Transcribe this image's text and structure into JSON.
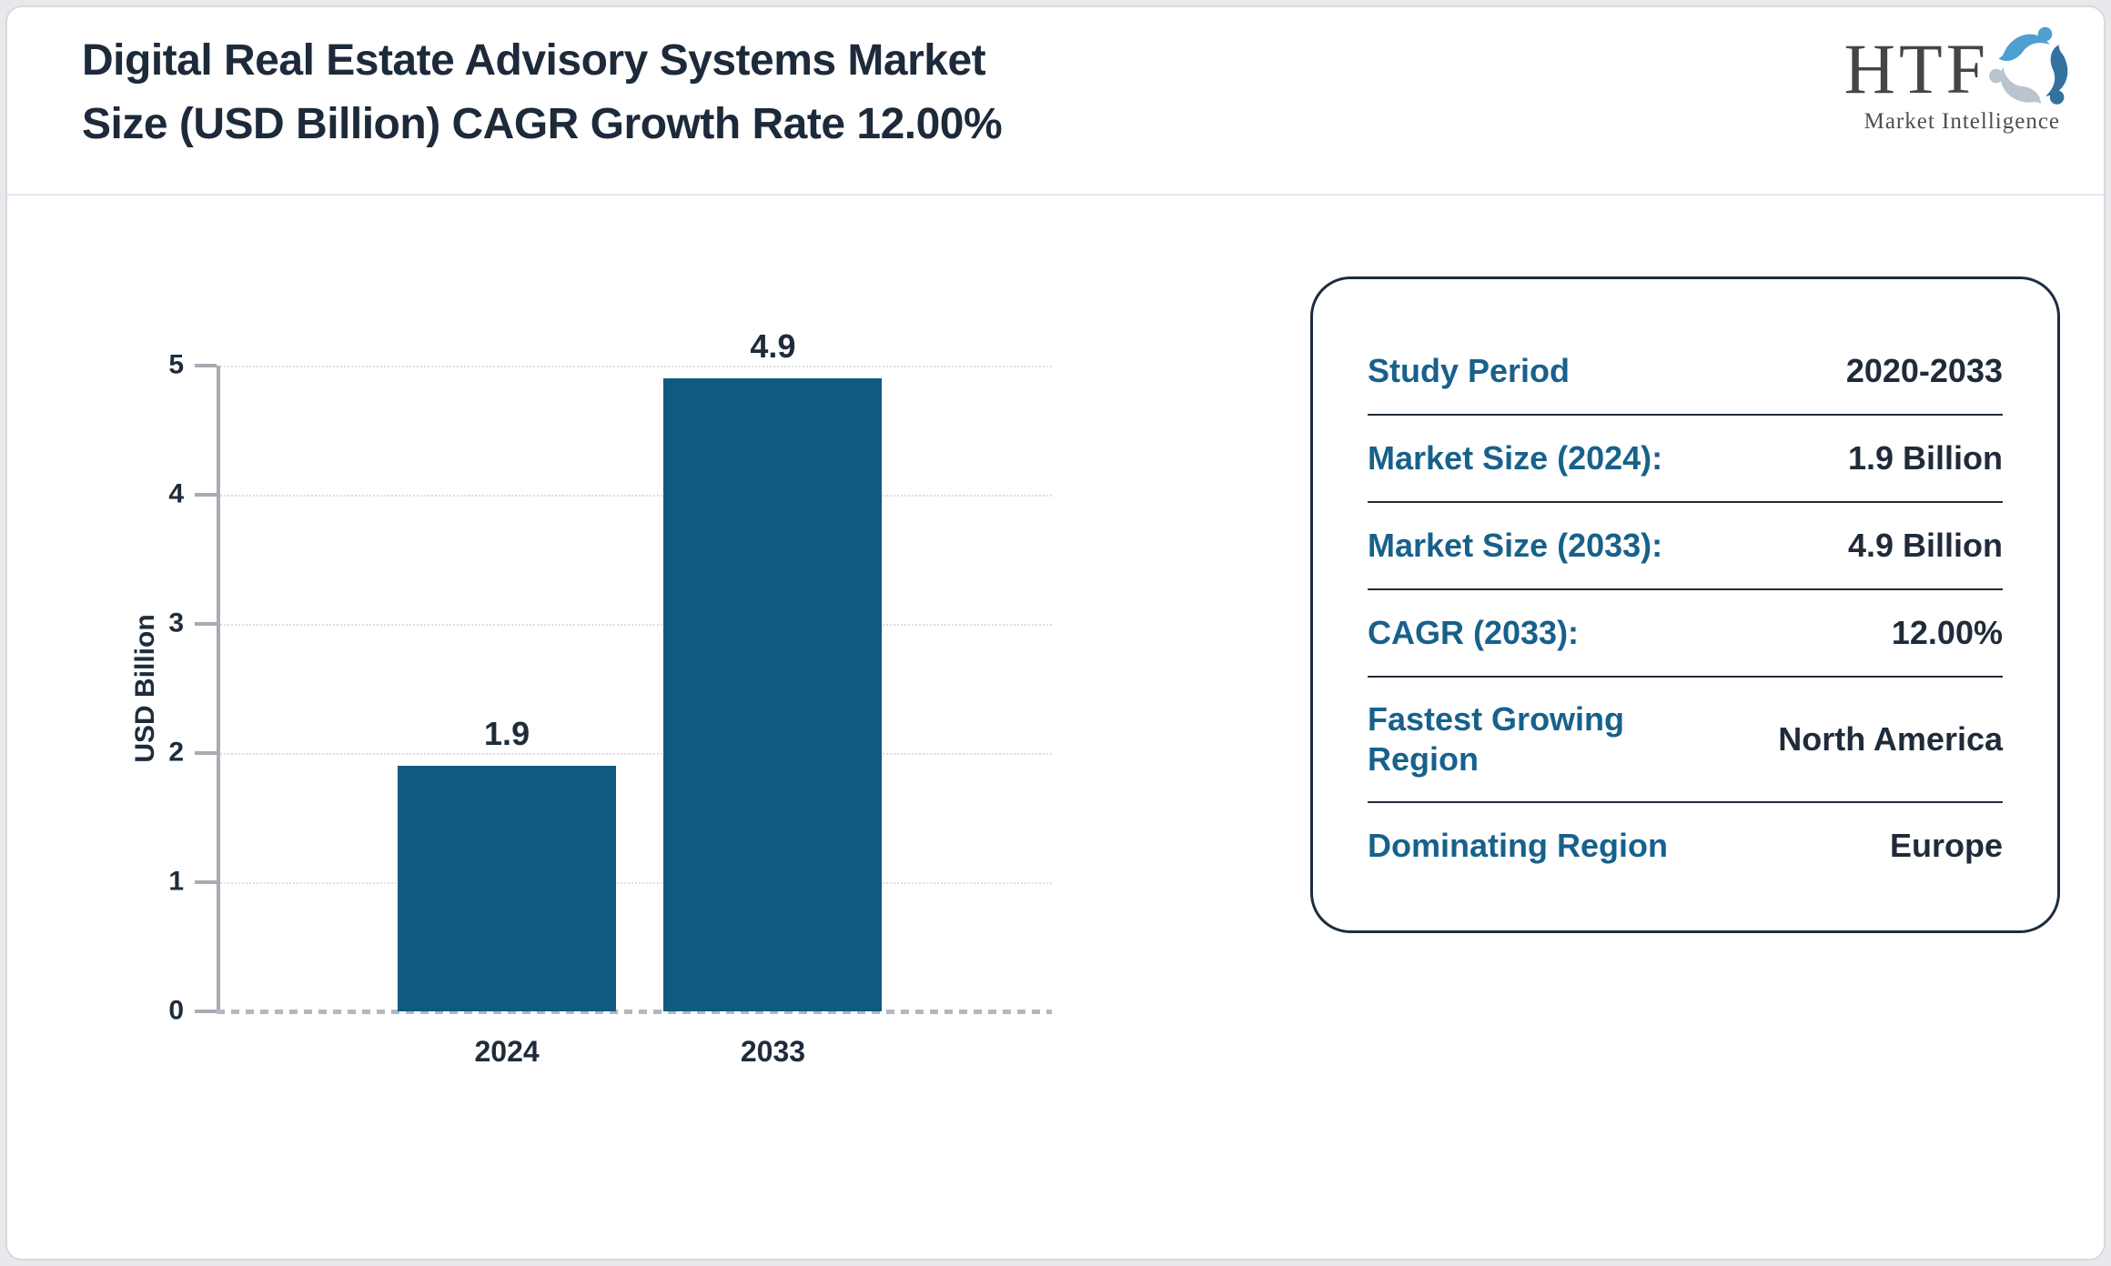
{
  "header": {
    "title_line1": "Digital Real Estate Advisory Systems Market",
    "title_line2": "Size (USD Billion) CAGR Growth Rate 12.00%"
  },
  "logo": {
    "text": "HTF",
    "subtitle": "Market Intelligence",
    "swirl_colors": [
      "#4d9fd0",
      "#33719f",
      "#b9c4ce"
    ]
  },
  "chart_data": {
    "type": "bar",
    "title": "Digital Real Estate Advisory Systems Market Size (USD Billion) CAGR Growth Rate 12.00%",
    "categories": [
      "2024",
      "2033"
    ],
    "values": [
      1.9,
      4.9
    ],
    "value_labels": [
      "1.9",
      "4.9"
    ],
    "xlabel": "",
    "ylabel": "USD Billion",
    "ylim": [
      0,
      5
    ],
    "yticks": [
      0,
      1,
      2,
      3,
      4,
      5
    ],
    "grid": "dotted horizontal gridlines",
    "legend": "none"
  },
  "info_panel": {
    "rows": [
      {
        "label": "Study Period",
        "value": "2020-2033"
      },
      {
        "label": "Market Size (2024):",
        "value": "1.9 Billion"
      },
      {
        "label": "Market Size (2033):",
        "value": "4.9 Billion"
      },
      {
        "label": "CAGR (2033):",
        "value": "12.00%"
      },
      {
        "label": "Fastest Growing Region",
        "value": "North America"
      },
      {
        "label": "Dominating Region",
        "value": "Europe"
      }
    ]
  },
  "colors": {
    "bar": "#0f5b80",
    "label_teal": "#17618b",
    "navy": "#1f2b3a",
    "axis_gray": "#a7abb3",
    "page_bg": "#e8e9ec"
  }
}
